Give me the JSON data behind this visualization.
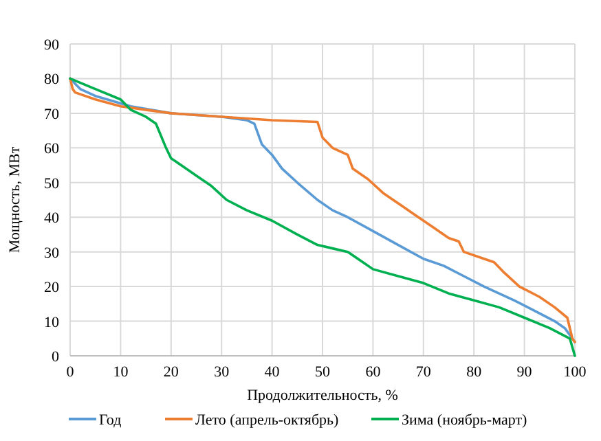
{
  "chart_data": {
    "type": "line",
    "xlabel": "Продолжительность, %",
    "ylabel": "Мощность, МВт",
    "xlim": [
      0,
      100
    ],
    "xticks": [
      0,
      10,
      20,
      30,
      40,
      50,
      60,
      70,
      80,
      90,
      100
    ],
    "ylim": [
      0,
      90
    ],
    "yticks": [
      0,
      10,
      20,
      30,
      40,
      50,
      60,
      70,
      80,
      90
    ],
    "grid": true,
    "legend": "bottom",
    "marker": "none",
    "line_style": "solid",
    "series": [
      {
        "name": "Год",
        "color": "#5b9bd5",
        "x": [
          0,
          2,
          5,
          12,
          20,
          30,
          35,
          36.5,
          38,
          40,
          42,
          45,
          49,
          52,
          55,
          60,
          65,
          70,
          74,
          78,
          82,
          88,
          92,
          96,
          98,
          99.5,
          100
        ],
        "values": [
          80,
          77,
          75,
          72,
          70,
          69,
          68,
          67,
          61,
          58,
          54,
          50,
          45,
          42,
          40,
          36,
          32,
          28,
          26,
          23,
          20,
          16,
          13,
          10,
          8,
          5,
          4
        ]
      },
      {
        "name": "Лето (апрель-октябрь)",
        "color": "#ed7d31",
        "x": [
          0,
          0.5,
          1,
          5,
          10,
          15,
          20,
          30,
          40,
          49,
          50,
          52,
          55,
          56,
          59,
          62,
          66,
          68,
          72,
          75,
          77,
          78,
          82,
          84,
          86,
          89,
          93,
          96,
          98.5,
          99.5,
          100
        ],
        "values": [
          80,
          77,
          76,
          74,
          72,
          71,
          70,
          69,
          68,
          67.5,
          63,
          60,
          58,
          54,
          51,
          47,
          43,
          41,
          37,
          34,
          33,
          30,
          28,
          27,
          24,
          20,
          17,
          14,
          11,
          5,
          4
        ]
      },
      {
        "name": "Зима (ноябрь-март)",
        "color": "#00b050",
        "x": [
          0,
          5,
          10,
          12,
          15,
          17,
          19,
          20,
          22,
          25,
          28,
          31,
          35,
          40,
          45,
          49,
          52,
          55,
          58,
          60,
          65,
          70,
          75,
          80,
          85,
          90,
          95,
          99,
          100
        ],
        "values": [
          80,
          77,
          74,
          71,
          69,
          67,
          60,
          57,
          55,
          52,
          49,
          45,
          42,
          39,
          35,
          32,
          31,
          30,
          27,
          25,
          23,
          21,
          18,
          16,
          14,
          11,
          8,
          5,
          0
        ]
      }
    ]
  }
}
